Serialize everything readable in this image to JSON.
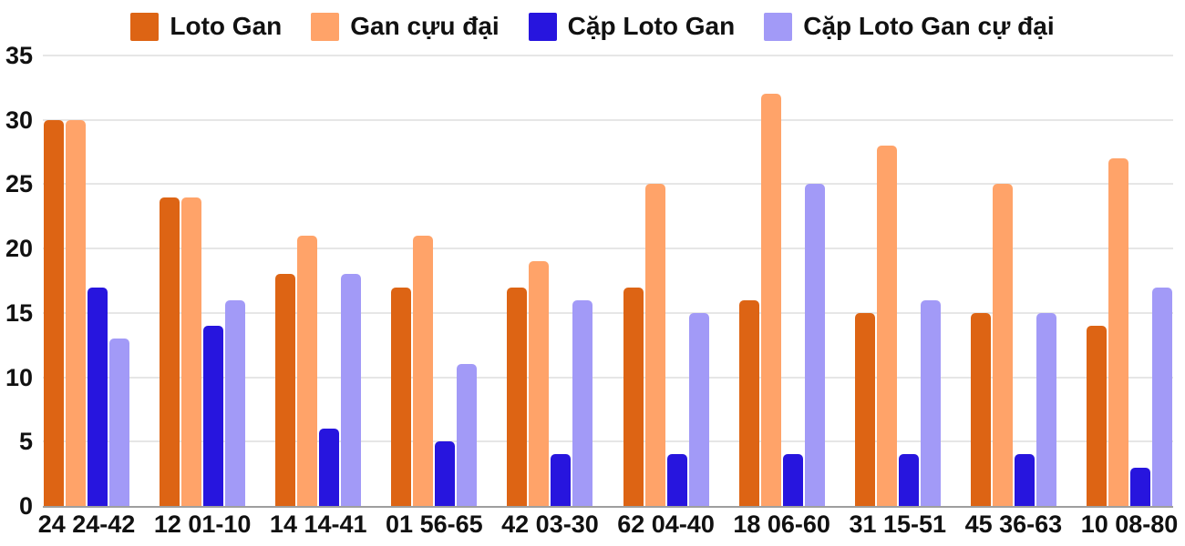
{
  "chart_data": {
    "type": "bar",
    "title": "",
    "xlabel": "",
    "ylabel": "",
    "categories": [
      "24 24-42",
      "12 01-10",
      "14 14-41",
      "01 56-65",
      "42 03-30",
      "62 04-40",
      "18 06-60",
      "31 15-51",
      "45 36-63",
      "10 08-80"
    ],
    "series": [
      {
        "name": "Loto Gan",
        "color": "#DD6414",
        "values": [
          30,
          24,
          18,
          17,
          17,
          17,
          16,
          15,
          15,
          14
        ]
      },
      {
        "name": "Gan cựu đại",
        "color": "#FFA369",
        "values": [
          30,
          24,
          21,
          21,
          19,
          25,
          32,
          28,
          25,
          27
        ]
      },
      {
        "name": "Cặp Loto Gan",
        "color": "#2715DE",
        "values": [
          17,
          14,
          6,
          5,
          4,
          4,
          4,
          4,
          4,
          3
        ]
      },
      {
        "name": "Cặp Loto Gan cự đại",
        "color": "#A29AF7",
        "values": [
          13,
          16,
          18,
          11,
          16,
          15,
          25,
          16,
          15,
          17
        ]
      }
    ],
    "ylim": [
      0,
      35
    ],
    "yticks": [
      0,
      5,
      10,
      15,
      20,
      25,
      30,
      35
    ],
    "grid": "horizontal",
    "legend_position": "top"
  },
  "style": {
    "grid_line_color": "#E6E6E6",
    "axis_line_color": "#9E9E9E",
    "text_color": "#111111",
    "background_color": "#FFFFFF"
  }
}
